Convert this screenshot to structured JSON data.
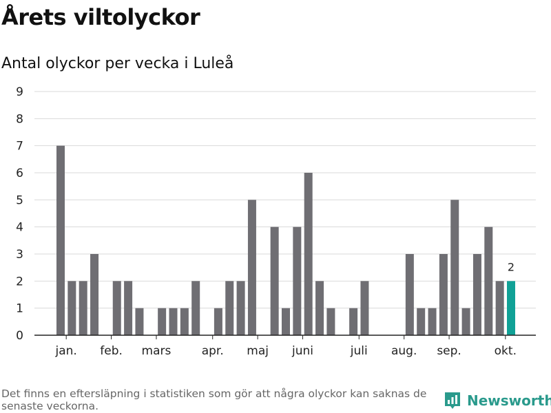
{
  "header": {
    "title": "Årets viltolyckor",
    "subtitle": "Antal olyckor per vecka i Luleå"
  },
  "footer": {
    "note": "Det finns en eftersläpning i statistiken som gör att några olyckor kan saknas de senaste veckorna.",
    "brand": "Newsworthy",
    "brand_icon": "newsworthy-logo-icon"
  },
  "colors": {
    "bar": "#6f6e73",
    "highlight": "#10a196",
    "grid": "#d9d9d9",
    "axis": "#222222",
    "brand": "#2a9a8c"
  },
  "chart_data": {
    "type": "bar",
    "title": "Antal olyckor per vecka i Luleå",
    "xlabel": "",
    "ylabel": "",
    "ylim": [
      0,
      9
    ],
    "yticks": [
      0,
      1,
      2,
      3,
      4,
      5,
      6,
      7,
      8,
      9
    ],
    "grid": true,
    "x_unit": "week",
    "weeks": [
      1,
      2,
      3,
      4,
      5,
      6,
      7,
      8,
      9,
      10,
      11,
      12,
      13,
      14,
      15,
      16,
      17,
      18,
      19,
      20,
      21,
      22,
      23,
      24,
      25,
      26,
      27,
      28,
      29,
      30,
      31,
      32,
      33,
      34,
      35,
      36,
      37,
      38,
      39,
      40,
      41
    ],
    "values": [
      7,
      2,
      2,
      3,
      0,
      2,
      2,
      1,
      0,
      1,
      1,
      1,
      2,
      0,
      1,
      2,
      2,
      5,
      0,
      4,
      1,
      4,
      6,
      2,
      1,
      0,
      1,
      2,
      0,
      0,
      0,
      3,
      1,
      1,
      3,
      5,
      1,
      3,
      4,
      2,
      2
    ],
    "highlight_week": 41,
    "highlight_label": "2",
    "month_labels": [
      {
        "label": "jan.",
        "week": 1.5
      },
      {
        "label": "feb.",
        "week": 5.5
      },
      {
        "label": "mars",
        "week": 9.5
      },
      {
        "label": "apr.",
        "week": 14.5
      },
      {
        "label": "maj",
        "week": 18.5
      },
      {
        "label": "juni",
        "week": 22.5
      },
      {
        "label": "juli",
        "week": 27.5
      },
      {
        "label": "aug.",
        "week": 31.5
      },
      {
        "label": "sep.",
        "week": 35.5
      },
      {
        "label": "okt.",
        "week": 40.5
      }
    ]
  }
}
